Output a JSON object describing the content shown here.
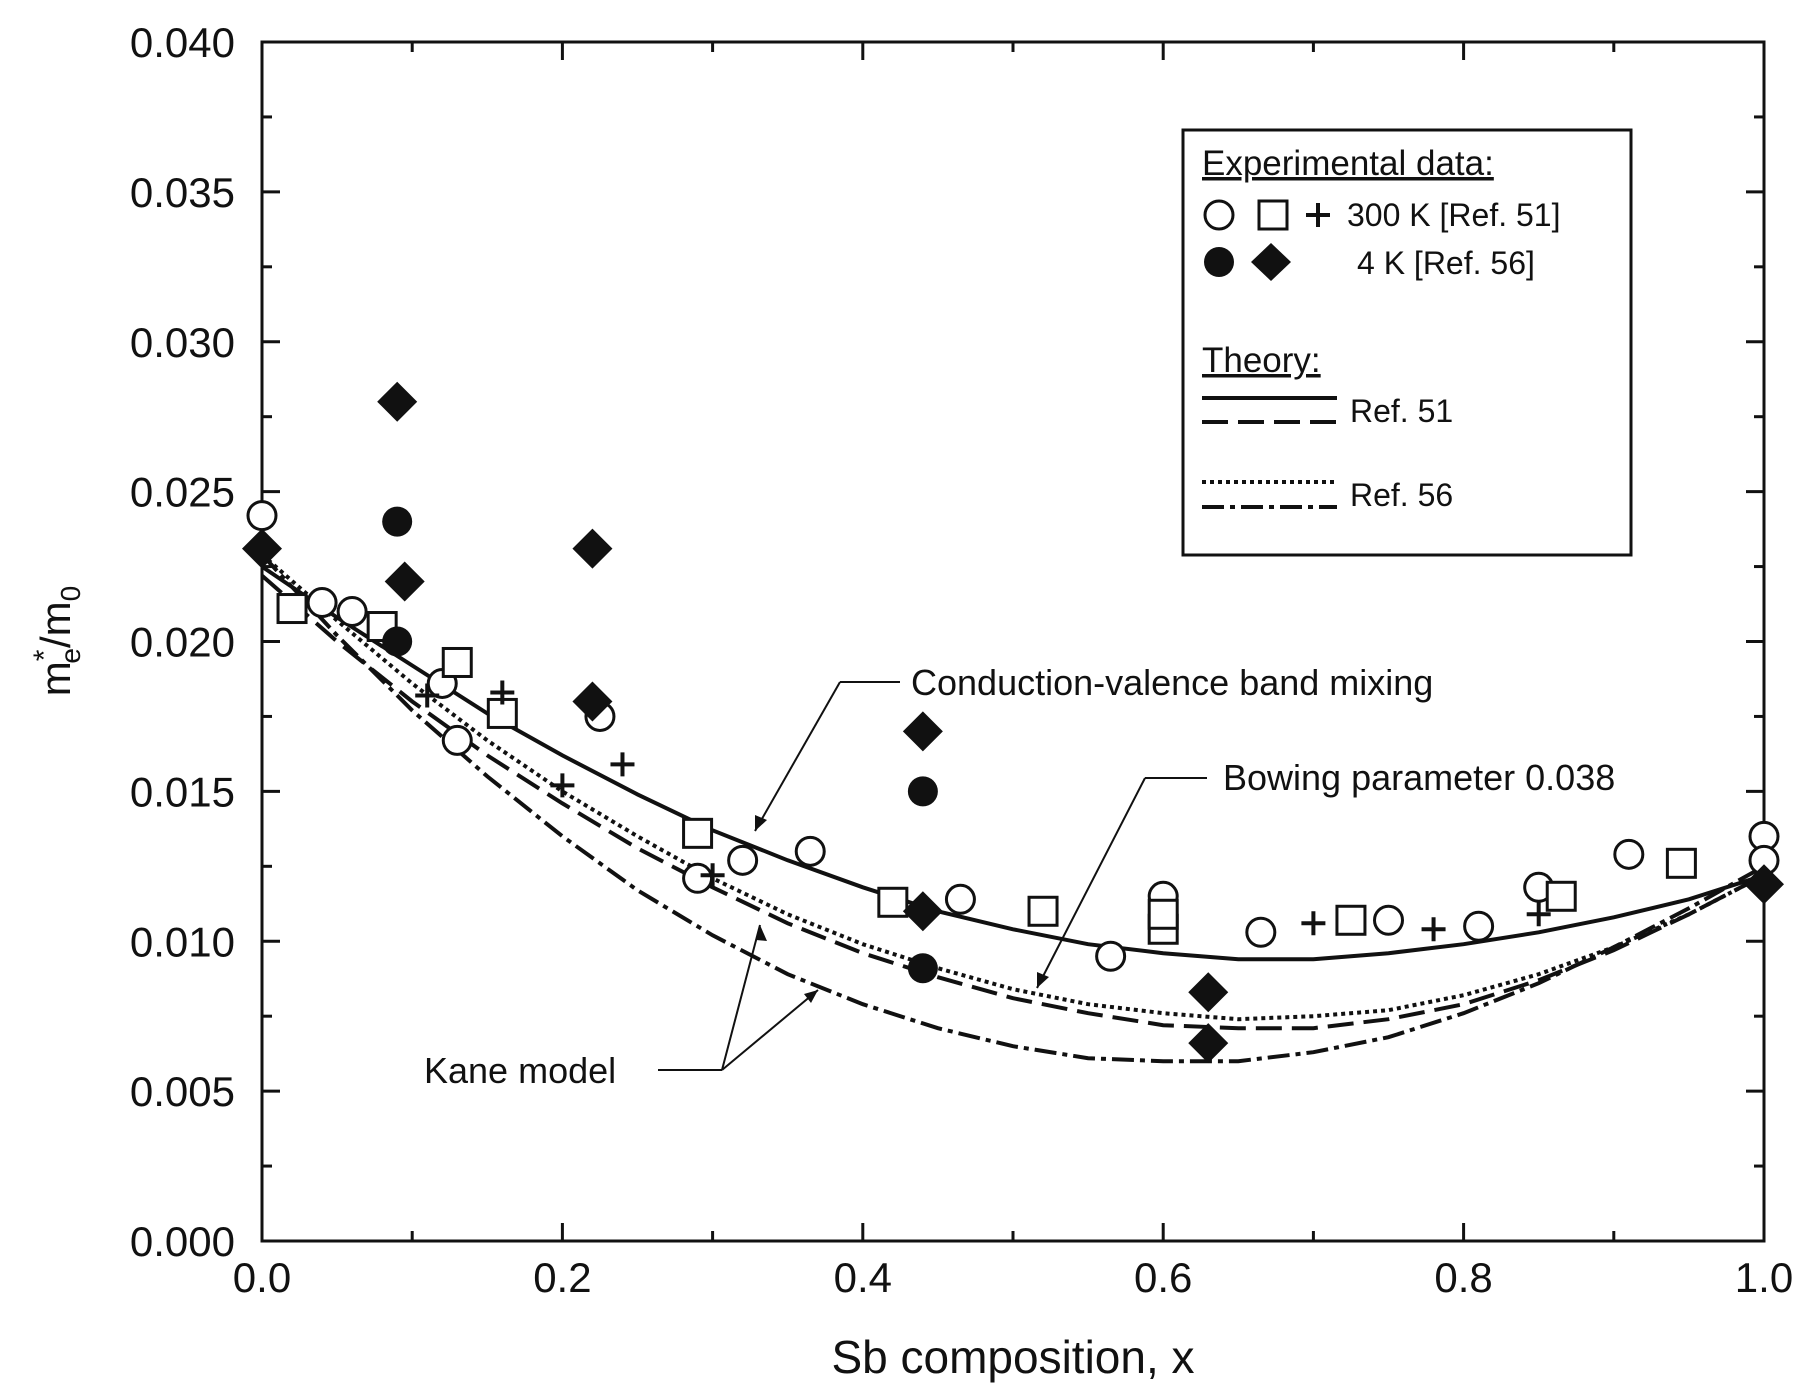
{
  "chart_data": {
    "type": "scatter",
    "xlabel": "Sb composition, x",
    "ylabel_main": "m",
    "ylabel_sup": "*",
    "ylabel_sub_e": "e",
    "ylabel_div": "/m",
    "ylabel_sub_0": "0",
    "xlim": [
      0.0,
      1.0
    ],
    "ylim": [
      0.0,
      0.04
    ],
    "xticks": [
      0.0,
      0.2,
      0.4,
      0.6,
      0.8,
      1.0
    ],
    "xtick_labels": [
      "0.0",
      "0.2",
      "0.4",
      "0.6",
      "0.8",
      "1.0"
    ],
    "yticks": [
      0.0,
      0.005,
      0.01,
      0.015,
      0.02,
      0.025,
      0.03,
      0.035,
      0.04
    ],
    "ytick_labels": [
      "0.000",
      "0.005",
      "0.010",
      "0.015",
      "0.020",
      "0.025",
      "0.030",
      "0.035",
      "0.040"
    ],
    "series": [
      {
        "name": "300 K circles",
        "marker": "open-circle",
        "points": [
          [
            0.0,
            0.0242
          ],
          [
            0.04,
            0.0213
          ],
          [
            0.06,
            0.021
          ],
          [
            0.12,
            0.0186
          ],
          [
            0.13,
            0.0167
          ],
          [
            0.225,
            0.0175
          ],
          [
            0.29,
            0.0121
          ],
          [
            0.32,
            0.0127
          ],
          [
            0.365,
            0.013
          ],
          [
            0.465,
            0.0114
          ],
          [
            0.565,
            0.0095
          ],
          [
            0.6,
            0.0115
          ],
          [
            0.665,
            0.0103
          ],
          [
            0.75,
            0.0107
          ],
          [
            0.81,
            0.0105
          ],
          [
            0.85,
            0.0118
          ],
          [
            0.91,
            0.0129
          ],
          [
            1.0,
            0.0135
          ],
          [
            1.0,
            0.0127
          ]
        ]
      },
      {
        "name": "300 K squares",
        "marker": "open-square",
        "points": [
          [
            0.02,
            0.0211
          ],
          [
            0.08,
            0.0205
          ],
          [
            0.13,
            0.0193
          ],
          [
            0.16,
            0.0176
          ],
          [
            0.29,
            0.0136
          ],
          [
            0.42,
            0.0113
          ],
          [
            0.52,
            0.011
          ],
          [
            0.6,
            0.0104
          ],
          [
            0.6,
            0.0109
          ],
          [
            0.725,
            0.0107
          ],
          [
            0.865,
            0.0115
          ],
          [
            0.945,
            0.0126
          ]
        ]
      },
      {
        "name": "300 K plus",
        "marker": "plus",
        "points": [
          [
            0.11,
            0.0182
          ],
          [
            0.16,
            0.0183
          ],
          [
            0.2,
            0.0152
          ],
          [
            0.24,
            0.0159
          ],
          [
            0.3,
            0.0122
          ],
          [
            0.7,
            0.0106
          ],
          [
            0.78,
            0.0104
          ],
          [
            0.85,
            0.0109
          ]
        ]
      },
      {
        "name": "4 K circles",
        "marker": "filled-circle",
        "points": [
          [
            0.09,
            0.024
          ],
          [
            0.09,
            0.02
          ],
          [
            0.44,
            0.015
          ],
          [
            0.44,
            0.0091
          ]
        ]
      },
      {
        "name": "4 K diamonds",
        "marker": "filled-diamond",
        "points": [
          [
            0.0,
            0.0231
          ],
          [
            0.09,
            0.028
          ],
          [
            0.095,
            0.022
          ],
          [
            0.22,
            0.0231
          ],
          [
            0.22,
            0.018
          ],
          [
            0.44,
            0.017
          ],
          [
            0.44,
            0.011
          ],
          [
            0.63,
            0.0083
          ],
          [
            0.63,
            0.0066
          ],
          [
            1.0,
            0.0119
          ]
        ]
      }
    ],
    "curves": [
      {
        "name": "Conduction-valence band mixing",
        "style": "solid",
        "x": [
          0,
          0.05,
          0.1,
          0.15,
          0.2,
          0.25,
          0.3,
          0.35,
          0.4,
          0.45,
          0.5,
          0.55,
          0.6,
          0.65,
          0.7,
          0.75,
          0.8,
          0.85,
          0.9,
          0.95,
          1.0
        ],
        "y": [
          0.0225,
          0.0208,
          0.0192,
          0.0176,
          0.0162,
          0.0149,
          0.0137,
          0.0127,
          0.0118,
          0.011,
          0.0104,
          0.0099,
          0.0096,
          0.0094,
          0.0094,
          0.0096,
          0.0099,
          0.0103,
          0.0108,
          0.0114,
          0.0122
        ]
      },
      {
        "name": "Ref. 51 Kane model (dashed)",
        "style": "dashed",
        "x": [
          0,
          0.05,
          0.1,
          0.15,
          0.2,
          0.25,
          0.3,
          0.35,
          0.4,
          0.45,
          0.5,
          0.55,
          0.6,
          0.65,
          0.7,
          0.75,
          0.8,
          0.85,
          0.9,
          0.95,
          1.0
        ],
        "y": [
          0.0222,
          0.02,
          0.018,
          0.0162,
          0.0146,
          0.0131,
          0.0118,
          0.0106,
          0.0096,
          0.0088,
          0.0081,
          0.0076,
          0.0072,
          0.0071,
          0.0071,
          0.0074,
          0.0079,
          0.0087,
          0.0097,
          0.0109,
          0.0122
        ]
      },
      {
        "name": "Ref. 56 Bowing parameter 0.038 (dotted)",
        "style": "dotted",
        "x": [
          0,
          0.05,
          0.1,
          0.15,
          0.2,
          0.25,
          0.3,
          0.35,
          0.4,
          0.45,
          0.5,
          0.55,
          0.6,
          0.65,
          0.7,
          0.75,
          0.8,
          0.85,
          0.9,
          0.95,
          1.0
        ],
        "y": [
          0.0229,
          0.0207,
          0.0186,
          0.0167,
          0.015,
          0.0135,
          0.0121,
          0.0109,
          0.0099,
          0.0091,
          0.0084,
          0.0079,
          0.0076,
          0.0074,
          0.0075,
          0.0077,
          0.0082,
          0.0089,
          0.0098,
          0.0109,
          0.0122
        ]
      },
      {
        "name": "Ref. 56 Kane model (dash-dot)",
        "style": "dashdot",
        "x": [
          0,
          0.05,
          0.1,
          0.15,
          0.2,
          0.25,
          0.3,
          0.35,
          0.4,
          0.45,
          0.5,
          0.55,
          0.6,
          0.65,
          0.7,
          0.75,
          0.8,
          0.85,
          0.9,
          0.95,
          1.0
        ],
        "y": [
          0.0229,
          0.0202,
          0.0177,
          0.0155,
          0.0135,
          0.0117,
          0.0102,
          0.0089,
          0.0079,
          0.0071,
          0.0065,
          0.0061,
          0.006,
          0.006,
          0.0063,
          0.0068,
          0.0076,
          0.0086,
          0.0098,
          0.0111,
          0.0125
        ]
      }
    ],
    "legend": {
      "position": "top-right",
      "experimental_header": "Experimental data:",
      "entry_300k": "300 K [Ref. 51]",
      "entry_4k": "4 K [Ref. 56]",
      "theory_header": "Theory:",
      "ref51": "Ref. 51",
      "ref56": "Ref. 56"
    },
    "annotations": {
      "band_mixing": "Conduction-valence band mixing",
      "bowing": "Bowing parameter 0.038",
      "kane": "Kane model"
    }
  }
}
